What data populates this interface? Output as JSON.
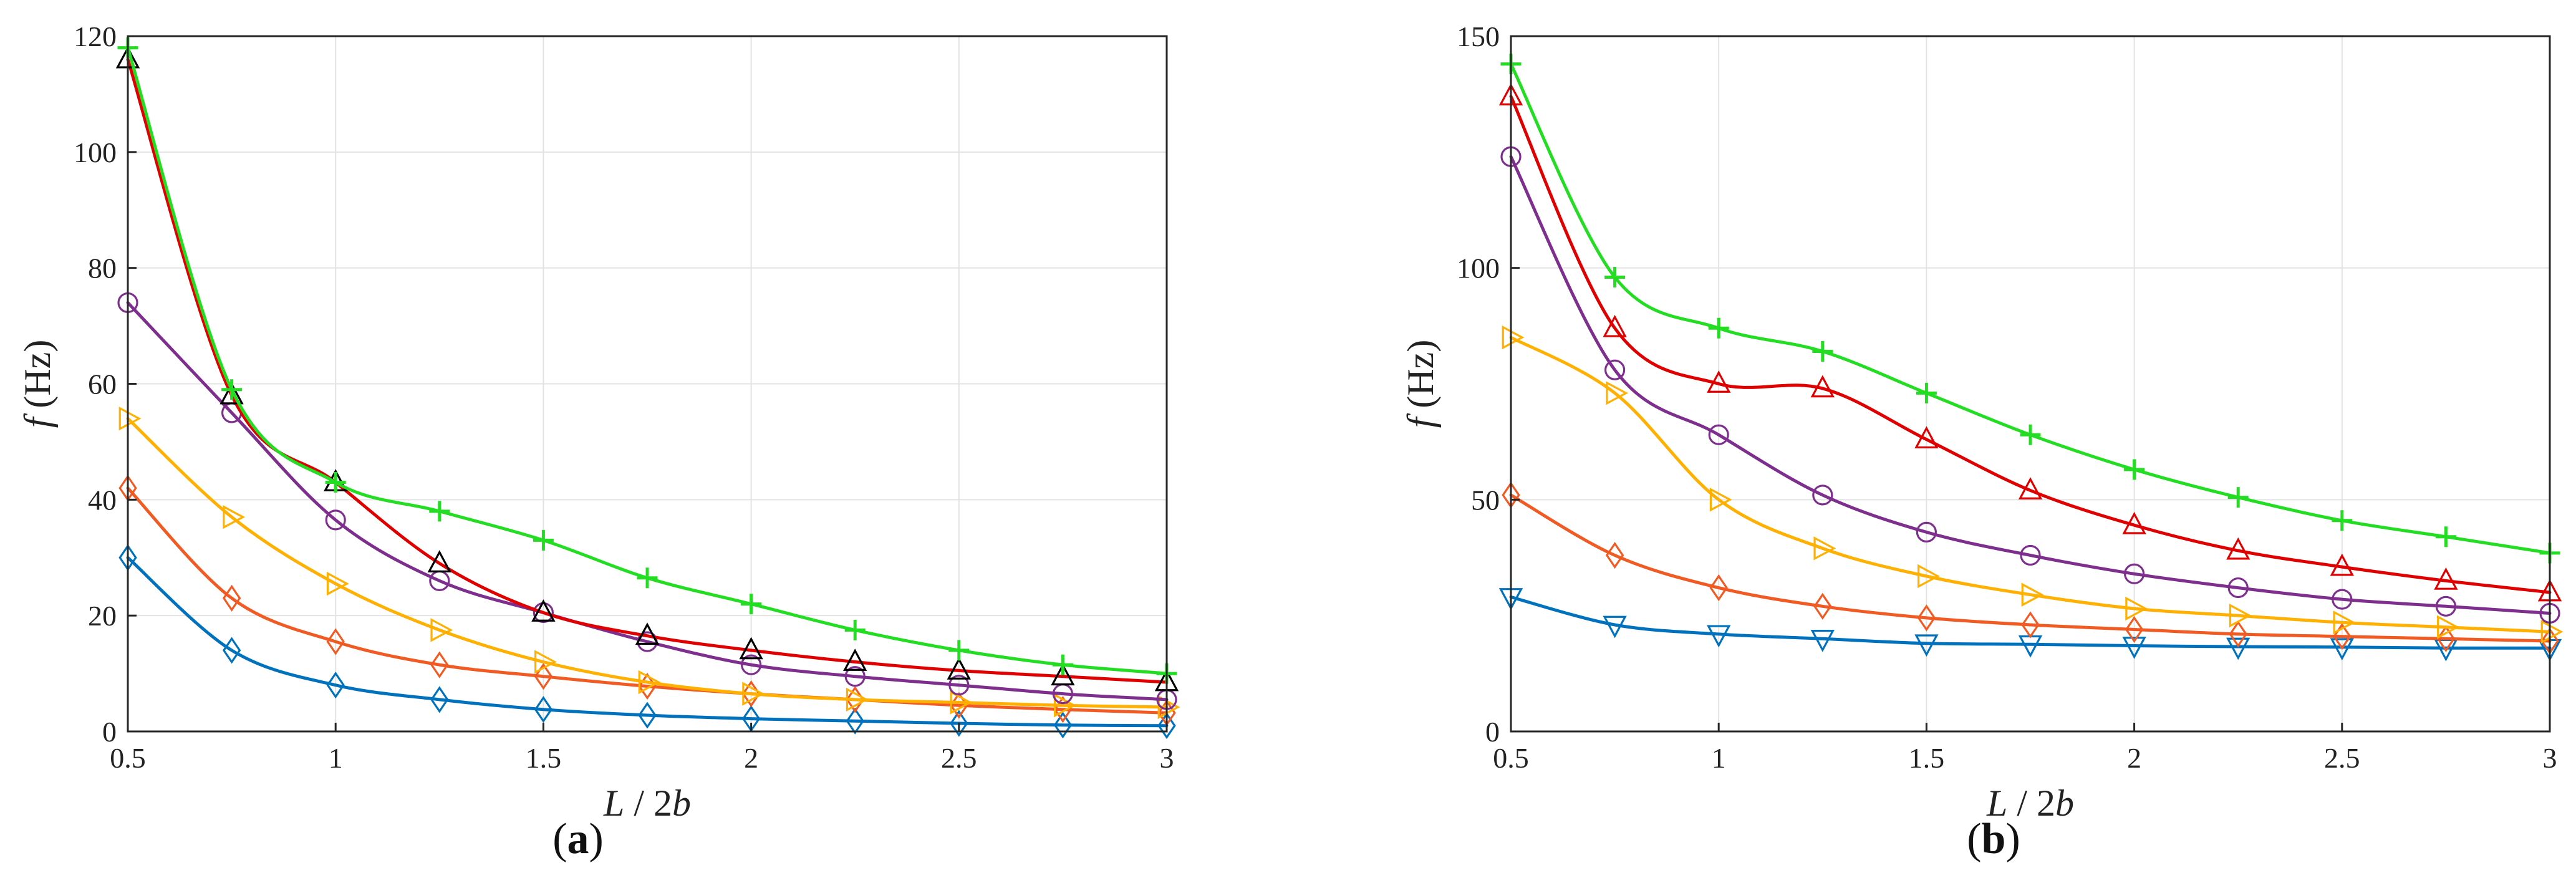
{
  "chart_data": [
    {
      "type": "line",
      "caption_open": "(",
      "caption_letter": "a",
      "caption_close": ")",
      "xlabel_var": "L",
      "xlabel_sep": " / 2",
      "xlabel_var2": "b",
      "ylabel_var": "f",
      "ylabel_unit": " (Hz)",
      "xlim": [
        0.5,
        3
      ],
      "ylim": [
        0,
        120
      ],
      "xticks": [
        0.5,
        1,
        1.5,
        2,
        2.5,
        3
      ],
      "yticks": [
        0,
        20,
        40,
        60,
        80,
        100,
        120
      ],
      "grid": true,
      "x": [
        0.5,
        0.75,
        1,
        1.25,
        1.5,
        1.75,
        2,
        2.25,
        2.5,
        2.75,
        3
      ],
      "series": [
        {
          "name": "series-1",
          "color": "#0072BD",
          "marker": "diamond",
          "values": [
            30,
            14,
            8,
            5.5,
            3.8,
            2.8,
            2.2,
            1.8,
            1.4,
            1.1,
            1.0
          ]
        },
        {
          "name": "series-2",
          "color": "#F15A22",
          "marker": "diamond",
          "values": [
            42,
            23,
            15.5,
            11.5,
            9.5,
            7.8,
            6.5,
            5.5,
            4.5,
            3.8,
            3.2
          ]
        },
        {
          "name": "series-3",
          "color": "#FFB000",
          "marker": "triangle-right",
          "values": [
            54,
            37,
            25.5,
            17.5,
            12,
            8.5,
            6.5,
            5.5,
            5,
            4.5,
            4.2
          ]
        },
        {
          "name": "series-4",
          "color": "#7E2F8E",
          "marker": "circle",
          "values": [
            74,
            55,
            36.5,
            26,
            20.5,
            15.5,
            11.5,
            9.5,
            8,
            6.5,
            5.5
          ]
        },
        {
          "name": "series-5",
          "color": "#E00000",
          "marker": "triangle-up",
          "marker_color": "#000000",
          "values": [
            116,
            58,
            43,
            29,
            20.5,
            16.5,
            14,
            12,
            10.5,
            9.5,
            8.5
          ]
        },
        {
          "name": "series-6",
          "color": "#22DD22",
          "marker": "plus",
          "values": [
            118,
            59,
            43,
            38,
            33,
            26.5,
            22,
            17.5,
            14,
            11.5,
            10
          ]
        }
      ]
    },
    {
      "type": "line",
      "caption_open": "(",
      "caption_letter": "b",
      "caption_close": ")",
      "xlabel_var": "L",
      "xlabel_sep": " / 2",
      "xlabel_var2": "b",
      "ylabel_var": "f",
      "ylabel_unit": " (Hz)",
      "xlim": [
        0.5,
        3
      ],
      "ylim": [
        0,
        150
      ],
      "xticks": [
        0.5,
        1,
        1.5,
        2,
        2.5,
        3
      ],
      "yticks": [
        0,
        50,
        100,
        150
      ],
      "grid": true,
      "x": [
        0.5,
        0.75,
        1,
        1.25,
        1.5,
        1.75,
        2,
        2.25,
        2.5,
        2.75,
        3
      ],
      "series": [
        {
          "name": "series-1",
          "color": "#0072BD",
          "marker": "triangle-down",
          "values": [
            29,
            23,
            21,
            20,
            19,
            18.8,
            18.5,
            18.3,
            18.2,
            18,
            18
          ]
        },
        {
          "name": "series-2",
          "color": "#F15A22",
          "marker": "diamond",
          "values": [
            51,
            38,
            31,
            27,
            24.5,
            23,
            22,
            21,
            20.5,
            20,
            19.5
          ]
        },
        {
          "name": "series-3",
          "color": "#FFB000",
          "marker": "triangle-right",
          "values": [
            85,
            73,
            50,
            39.5,
            33.5,
            29.5,
            26.5,
            25,
            23.5,
            22.5,
            21.5
          ]
        },
        {
          "name": "series-4",
          "color": "#7E2F8E",
          "marker": "circle",
          "values": [
            124,
            78,
            64,
            51,
            43,
            38,
            34,
            31,
            28.5,
            27,
            25.5
          ]
        },
        {
          "name": "series-5",
          "color": "#E00000",
          "marker": "triangle-up",
          "values": [
            137,
            87,
            75,
            74,
            63,
            52,
            44.5,
            39,
            35.5,
            32.5,
            30
          ]
        },
        {
          "name": "series-6",
          "color": "#22DD22",
          "marker": "plus",
          "values": [
            144,
            98,
            87,
            82,
            73,
            64,
            56.5,
            50.5,
            45.5,
            42,
            38.5
          ]
        }
      ]
    }
  ]
}
